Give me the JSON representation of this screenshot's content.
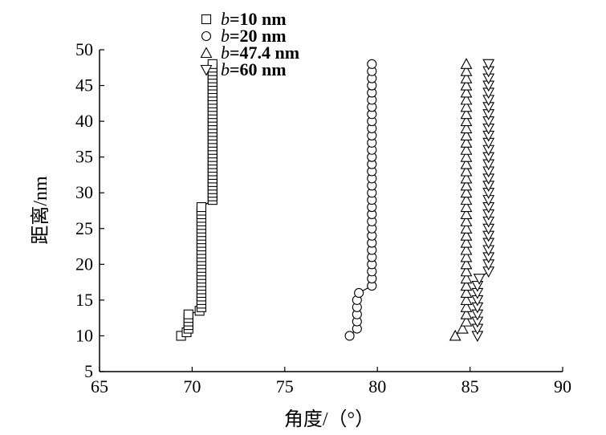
{
  "chart_data": {
    "type": "scatter",
    "xlabel": "角度/（°）",
    "ylabel": "距离/nm",
    "xlim": [
      65,
      90
    ],
    "ylim": [
      5,
      50
    ],
    "x_ticks": [
      "65",
      "70",
      "75",
      "80",
      "85",
      "90"
    ],
    "y_ticks": [
      "5",
      "10",
      "15",
      "20",
      "25",
      "30",
      "35",
      "40",
      "45",
      "50"
    ],
    "legend_position": "top-left",
    "series": [
      {
        "name": "b=10 nm",
        "name_var": "b",
        "name_rest": "=10 nm",
        "marker": "square",
        "points": [
          [
            69.4,
            10.0
          ],
          [
            69.7,
            10.5
          ],
          [
            69.8,
            11.0
          ],
          [
            69.8,
            11.5
          ],
          [
            69.8,
            12.0
          ],
          [
            69.8,
            12.5
          ],
          [
            69.8,
            13.0
          ],
          [
            70.4,
            13.5
          ],
          [
            70.5,
            14.0
          ],
          [
            70.5,
            14.5
          ],
          [
            70.5,
            15.0
          ],
          [
            70.5,
            15.5
          ],
          [
            70.5,
            16.0
          ],
          [
            70.5,
            16.5
          ],
          [
            70.5,
            17.0
          ],
          [
            70.5,
            17.5
          ],
          [
            70.5,
            18.0
          ],
          [
            70.5,
            18.5
          ],
          [
            70.5,
            19.0
          ],
          [
            70.5,
            19.5
          ],
          [
            70.5,
            20.0
          ],
          [
            70.5,
            20.5
          ],
          [
            70.5,
            21.0
          ],
          [
            70.5,
            21.5
          ],
          [
            70.5,
            22.0
          ],
          [
            70.5,
            22.5
          ],
          [
            70.5,
            23.0
          ],
          [
            70.5,
            23.5
          ],
          [
            70.5,
            24.0
          ],
          [
            70.5,
            24.5
          ],
          [
            70.5,
            25.0
          ],
          [
            70.5,
            25.5
          ],
          [
            70.5,
            26.0
          ],
          [
            70.5,
            26.5
          ],
          [
            70.5,
            27.0
          ],
          [
            70.5,
            27.5
          ],
          [
            70.5,
            28.0
          ],
          [
            71.1,
            29.0
          ],
          [
            71.1,
            29.5
          ],
          [
            71.1,
            30.0
          ],
          [
            71.1,
            30.5
          ],
          [
            71.1,
            31.0
          ],
          [
            71.1,
            31.5
          ],
          [
            71.1,
            32.0
          ],
          [
            71.1,
            32.5
          ],
          [
            71.1,
            33.0
          ],
          [
            71.1,
            33.5
          ],
          [
            71.1,
            34.0
          ],
          [
            71.1,
            34.5
          ],
          [
            71.1,
            35.0
          ],
          [
            71.1,
            35.5
          ],
          [
            71.1,
            36.0
          ],
          [
            71.1,
            36.5
          ],
          [
            71.1,
            37.0
          ],
          [
            71.1,
            37.5
          ],
          [
            71.1,
            38.0
          ],
          [
            71.1,
            38.5
          ],
          [
            71.1,
            39.0
          ],
          [
            71.1,
            39.5
          ],
          [
            71.1,
            40.0
          ],
          [
            71.1,
            40.5
          ],
          [
            71.1,
            41.0
          ],
          [
            71.1,
            41.5
          ],
          [
            71.1,
            42.0
          ],
          [
            71.1,
            42.5
          ],
          [
            71.1,
            43.0
          ],
          [
            71.1,
            43.5
          ],
          [
            71.1,
            44.0
          ],
          [
            71.1,
            44.5
          ],
          [
            71.1,
            45.0
          ],
          [
            71.1,
            45.5
          ],
          [
            71.1,
            46.0
          ],
          [
            71.1,
            46.5
          ],
          [
            71.1,
            47.0
          ],
          [
            71.1,
            47.5
          ],
          [
            71.1,
            48.0
          ]
        ]
      },
      {
        "name": "b=20 nm",
        "name_var": "b",
        "name_rest": "=20 nm",
        "marker": "circle",
        "points": [
          [
            78.5,
            10.0
          ],
          [
            78.9,
            11.0
          ],
          [
            78.9,
            12.0
          ],
          [
            78.9,
            13.0
          ],
          [
            78.9,
            14.0
          ],
          [
            78.9,
            15.0
          ],
          [
            79.0,
            16.0
          ],
          [
            79.7,
            17.0
          ],
          [
            79.7,
            18.0
          ],
          [
            79.7,
            19.0
          ],
          [
            79.7,
            20.0
          ],
          [
            79.7,
            21.0
          ],
          [
            79.7,
            22.0
          ],
          [
            79.7,
            23.0
          ],
          [
            79.7,
            24.0
          ],
          [
            79.7,
            25.0
          ],
          [
            79.7,
            26.0
          ],
          [
            79.7,
            27.0
          ],
          [
            79.7,
            28.0
          ],
          [
            79.7,
            29.0
          ],
          [
            79.7,
            30.0
          ],
          [
            79.7,
            31.0
          ],
          [
            79.7,
            32.0
          ],
          [
            79.7,
            33.0
          ],
          [
            79.7,
            34.0
          ],
          [
            79.7,
            35.0
          ],
          [
            79.7,
            36.0
          ],
          [
            79.7,
            37.0
          ],
          [
            79.7,
            38.0
          ],
          [
            79.7,
            39.0
          ],
          [
            79.7,
            40.0
          ],
          [
            79.7,
            41.0
          ],
          [
            79.7,
            42.0
          ],
          [
            79.7,
            43.0
          ],
          [
            79.7,
            44.0
          ],
          [
            79.7,
            45.0
          ],
          [
            79.7,
            46.0
          ],
          [
            79.7,
            47.0
          ],
          [
            79.7,
            48.0
          ]
        ]
      },
      {
        "name": "b=47.4 nm",
        "name_var": "b",
        "name_rest": "=47.4 nm",
        "marker": "triangle-up",
        "points": [
          [
            84.2,
            10.0
          ],
          [
            84.6,
            11.0
          ],
          [
            84.8,
            12.0
          ],
          [
            84.8,
            13.0
          ],
          [
            84.8,
            14.0
          ],
          [
            84.8,
            15.0
          ],
          [
            84.8,
            16.0
          ],
          [
            84.8,
            17.0
          ],
          [
            84.8,
            18.0
          ],
          [
            84.8,
            19.0
          ],
          [
            84.8,
            20.0
          ],
          [
            84.8,
            21.0
          ],
          [
            84.8,
            22.0
          ],
          [
            84.8,
            23.0
          ],
          [
            84.8,
            24.0
          ],
          [
            84.8,
            25.0
          ],
          [
            84.8,
            26.0
          ],
          [
            84.8,
            27.0
          ],
          [
            84.8,
            28.0
          ],
          [
            84.8,
            29.0
          ],
          [
            84.8,
            30.0
          ],
          [
            84.8,
            31.0
          ],
          [
            84.8,
            32.0
          ],
          [
            84.8,
            33.0
          ],
          [
            84.8,
            34.0
          ],
          [
            84.8,
            35.0
          ],
          [
            84.8,
            36.0
          ],
          [
            84.8,
            37.0
          ],
          [
            84.8,
            38.0
          ],
          [
            84.8,
            39.0
          ],
          [
            84.8,
            40.0
          ],
          [
            84.8,
            41.0
          ],
          [
            84.8,
            42.0
          ],
          [
            84.8,
            43.0
          ],
          [
            84.8,
            44.0
          ],
          [
            84.8,
            45.0
          ],
          [
            84.8,
            46.0
          ],
          [
            84.8,
            47.0
          ],
          [
            84.8,
            48.0
          ]
        ]
      },
      {
        "name": "b=60 nm",
        "name_var": "b",
        "name_rest": "=60 nm",
        "marker": "triangle-down",
        "points": [
          [
            85.4,
            10.0
          ],
          [
            85.4,
            11.0
          ],
          [
            85.4,
            12.0
          ],
          [
            85.4,
            13.0
          ],
          [
            85.4,
            14.0
          ],
          [
            85.4,
            15.0
          ],
          [
            85.4,
            16.0
          ],
          [
            85.4,
            17.0
          ],
          [
            85.5,
            18.0
          ],
          [
            86.0,
            19.0
          ],
          [
            86.0,
            20.0
          ],
          [
            86.0,
            21.0
          ],
          [
            86.0,
            22.0
          ],
          [
            86.0,
            23.0
          ],
          [
            86.0,
            24.0
          ],
          [
            86.0,
            25.0
          ],
          [
            86.0,
            26.0
          ],
          [
            86.0,
            27.0
          ],
          [
            86.0,
            28.0
          ],
          [
            86.0,
            29.0
          ],
          [
            86.0,
            30.0
          ],
          [
            86.0,
            31.0
          ],
          [
            86.0,
            32.0
          ],
          [
            86.0,
            33.0
          ],
          [
            86.0,
            34.0
          ],
          [
            86.0,
            35.0
          ],
          [
            86.0,
            36.0
          ],
          [
            86.0,
            37.0
          ],
          [
            86.0,
            38.0
          ],
          [
            86.0,
            39.0
          ],
          [
            86.0,
            40.0
          ],
          [
            86.0,
            41.0
          ],
          [
            86.0,
            42.0
          ],
          [
            86.0,
            43.0
          ],
          [
            86.0,
            44.0
          ],
          [
            86.0,
            45.0
          ],
          [
            86.0,
            46.0
          ],
          [
            86.0,
            47.0
          ],
          [
            86.0,
            48.0
          ]
        ]
      }
    ]
  }
}
